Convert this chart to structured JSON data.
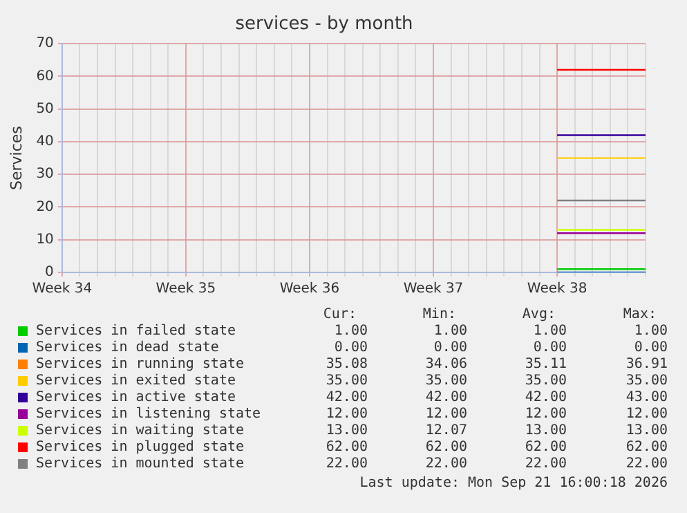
{
  "chart_data": {
    "type": "line",
    "title": "services - by month",
    "ylabel": "Services",
    "categories": [
      "Week 34",
      null,
      null,
      null,
      null,
      null,
      null,
      "Week 35",
      null,
      null,
      null,
      null,
      null,
      null,
      "Week 36",
      null,
      null,
      null,
      null,
      null,
      null,
      "Week 37",
      null,
      null,
      null,
      null,
      null,
      null,
      "Week 38",
      null,
      null,
      null,
      null,
      null
    ],
    "ylim": [
      0,
      70
    ],
    "yticks": [
      0,
      10,
      20,
      30,
      40,
      50,
      60,
      70
    ],
    "grid": true,
    "legend": "bottom",
    "marker": "none",
    "line_style": "solid",
    "series": [
      {
        "name": "Services in failed state",
        "color": "#00cc00",
        "values": [
          null,
          null,
          null,
          null,
          null,
          null,
          null,
          null,
          null,
          null,
          null,
          null,
          null,
          null,
          null,
          null,
          null,
          null,
          null,
          null,
          null,
          null,
          null,
          null,
          null,
          null,
          null,
          null,
          1,
          1,
          1,
          1,
          1,
          1
        ]
      },
      {
        "name": "Services in dead state",
        "color": "#0066b3",
        "values": [
          null,
          null,
          null,
          null,
          null,
          null,
          null,
          null,
          null,
          null,
          null,
          null,
          null,
          null,
          null,
          null,
          null,
          null,
          null,
          null,
          null,
          null,
          null,
          null,
          null,
          null,
          null,
          null,
          0,
          0,
          0,
          0,
          0,
          0
        ]
      },
      {
        "name": "Services in running state",
        "color": "#ff8000",
        "values": [
          null,
          null,
          null,
          null,
          null,
          null,
          null,
          null,
          null,
          null,
          null,
          null,
          null,
          null,
          null,
          null,
          null,
          null,
          null,
          null,
          null,
          null,
          null,
          null,
          null,
          null,
          null,
          null,
          null,
          null,
          null,
          null,
          null,
          null
        ]
      },
      {
        "name": "Services in exited state",
        "color": "#ffcc00",
        "values": [
          null,
          null,
          null,
          null,
          null,
          null,
          null,
          null,
          null,
          null,
          null,
          null,
          null,
          null,
          null,
          null,
          null,
          null,
          null,
          null,
          null,
          null,
          null,
          null,
          null,
          null,
          null,
          null,
          35,
          35,
          35,
          35,
          35,
          35
        ]
      },
      {
        "name": "Services in active state",
        "color": "#330099",
        "values": [
          null,
          null,
          null,
          null,
          null,
          null,
          null,
          null,
          null,
          null,
          null,
          null,
          null,
          null,
          null,
          null,
          null,
          null,
          null,
          null,
          null,
          null,
          null,
          null,
          null,
          null,
          null,
          null,
          42,
          42,
          42,
          42,
          42,
          42
        ]
      },
      {
        "name": "Services in listening state",
        "color": "#990099",
        "values": [
          null,
          null,
          null,
          null,
          null,
          null,
          null,
          null,
          null,
          null,
          null,
          null,
          null,
          null,
          null,
          null,
          null,
          null,
          null,
          null,
          null,
          null,
          null,
          null,
          null,
          null,
          null,
          null,
          12,
          12,
          12,
          12,
          12,
          12
        ]
      },
      {
        "name": "Services in waiting state",
        "color": "#ccff00",
        "values": [
          null,
          null,
          null,
          null,
          null,
          null,
          null,
          null,
          null,
          null,
          null,
          null,
          null,
          null,
          null,
          null,
          null,
          null,
          null,
          null,
          null,
          null,
          null,
          null,
          null,
          null,
          null,
          null,
          13,
          13,
          13,
          13,
          13,
          13
        ]
      },
      {
        "name": "Services in plugged state",
        "color": "#ff0000",
        "values": [
          null,
          null,
          null,
          null,
          null,
          null,
          null,
          null,
          null,
          null,
          null,
          null,
          null,
          null,
          null,
          null,
          null,
          null,
          null,
          null,
          null,
          null,
          null,
          null,
          null,
          null,
          null,
          null,
          62,
          62,
          62,
          62,
          62,
          62
        ]
      },
      {
        "name": "Services in mounted state",
        "color": "#808080",
        "values": [
          null,
          null,
          null,
          null,
          null,
          null,
          null,
          null,
          null,
          null,
          null,
          null,
          null,
          null,
          null,
          null,
          null,
          null,
          null,
          null,
          null,
          null,
          null,
          null,
          null,
          null,
          null,
          null,
          22,
          22,
          22,
          22,
          22,
          22
        ]
      }
    ],
    "annotations": [
      "Cur:",
      "Min:",
      "Avg:",
      "Max:",
      "1.00",
      "1.00",
      "1.00",
      "1.00",
      "0.00",
      "0.00",
      "0.00",
      "0.00",
      "35.08",
      "34.06",
      "35.11",
      "36.91",
      "35.00",
      "35.00",
      "35.00",
      "35.00",
      "42.00",
      "42.00",
      "42.00",
      "43.00",
      "12.00",
      "12.00",
      "12.00",
      "12.00",
      "13.00",
      "12.07",
      "13.00",
      "13.00",
      "62.00",
      "62.00",
      "62.00",
      "62.00",
      "22.00",
      "22.00",
      "22.00",
      "22.00",
      "Last update: Mon Sep 21 16:00:18 2026"
    ]
  }
}
